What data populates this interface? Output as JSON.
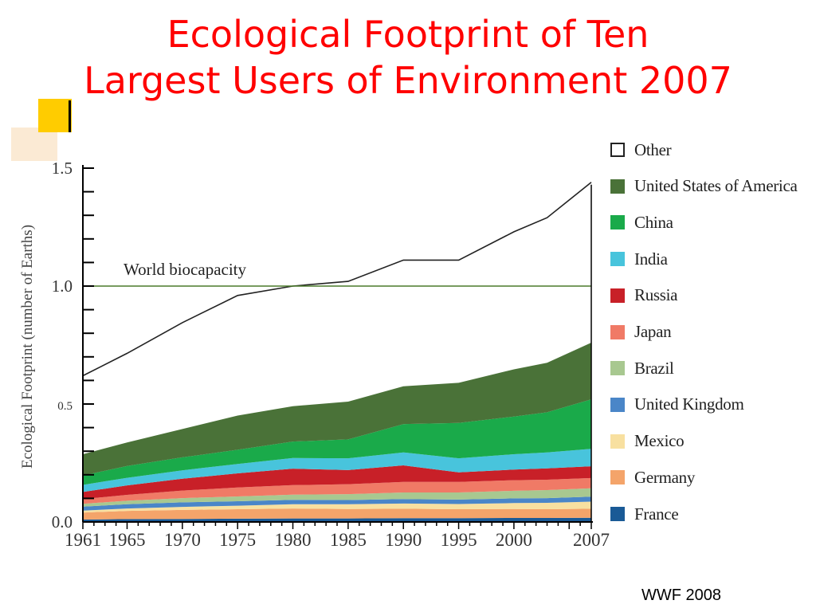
{
  "slide": {
    "title_line1": "Ecological Footprint of Ten",
    "title_line2": "Largest Users of Environment 2007",
    "credit": "WWF 2008"
  },
  "chart_data": {
    "type": "area",
    "title": "",
    "xlabel": "",
    "ylabel": "Ecological Footprint (number of Earths)",
    "xlim": [
      1961,
      2007
    ],
    "ylim": [
      0,
      1.5
    ],
    "y_ticks": [
      "1.5",
      "1.0",
      "0.5",
      "0.0"
    ],
    "x_ticks": [
      "1961",
      "1965",
      "1970",
      "1975",
      "1980",
      "1985",
      "1990",
      "1995",
      "2000",
      "2007"
    ],
    "annotation": "World biocapacity",
    "biocapacity_value": 1.0,
    "biocapacity_color": "#4a7a2a",
    "legend_position": "right",
    "x": [
      1961,
      1965,
      1970,
      1975,
      1980,
      1985,
      1990,
      1995,
      2000,
      2003,
      2007
    ],
    "series": [
      {
        "name": "France",
        "color": "#1a5a96",
        "values": [
          0.01,
          0.012,
          0.013,
          0.014,
          0.015,
          0.015,
          0.016,
          0.016,
          0.017,
          0.017,
          0.018
        ]
      },
      {
        "name": "Germany",
        "color": "#f4a46a",
        "values": [
          0.03,
          0.035,
          0.038,
          0.04,
          0.042,
          0.04,
          0.04,
          0.038,
          0.038,
          0.037,
          0.038
        ]
      },
      {
        "name": "Mexico",
        "color": "#f8e0a0",
        "values": [
          0.008,
          0.01,
          0.013,
          0.015,
          0.018,
          0.02,
          0.022,
          0.022,
          0.025,
          0.027,
          0.03
        ]
      },
      {
        "name": "United Kingdom",
        "color": "#4a86c8",
        "values": [
          0.017,
          0.018,
          0.019,
          0.019,
          0.019,
          0.018,
          0.019,
          0.019,
          0.02,
          0.02,
          0.021
        ]
      },
      {
        "name": "Brazil",
        "color": "#a8c890",
        "values": [
          0.012,
          0.015,
          0.018,
          0.02,
          0.022,
          0.025,
          0.028,
          0.03,
          0.032,
          0.034,
          0.036
        ]
      },
      {
        "name": "Japan",
        "color": "#f07a66",
        "values": [
          0.02,
          0.025,
          0.032,
          0.038,
          0.04,
          0.042,
          0.045,
          0.045,
          0.045,
          0.044,
          0.043
        ]
      },
      {
        "name": "Russia",
        "color": "#c82028",
        "values": [
          0.03,
          0.04,
          0.05,
          0.06,
          0.07,
          0.06,
          0.07,
          0.04,
          0.045,
          0.048,
          0.05
        ]
      },
      {
        "name": "India",
        "color": "#48c4dc",
        "values": [
          0.03,
          0.032,
          0.036,
          0.04,
          0.045,
          0.05,
          0.055,
          0.06,
          0.065,
          0.068,
          0.074
        ]
      },
      {
        "name": "China",
        "color": "#1aaa4a",
        "values": [
          0.04,
          0.05,
          0.055,
          0.06,
          0.07,
          0.08,
          0.12,
          0.15,
          0.16,
          0.17,
          0.21
        ]
      },
      {
        "name": "United States of America",
        "color": "#4a7238",
        "values": [
          0.09,
          0.1,
          0.12,
          0.145,
          0.15,
          0.16,
          0.16,
          0.17,
          0.2,
          0.21,
          0.24
        ]
      },
      {
        "name": "Other",
        "color": "#ffffff",
        "values": [
          0.333,
          0.378,
          0.451,
          0.509,
          0.509,
          0.51,
          0.535,
          0.52,
          0.583,
          0.615,
          0.68
        ]
      }
    ]
  }
}
